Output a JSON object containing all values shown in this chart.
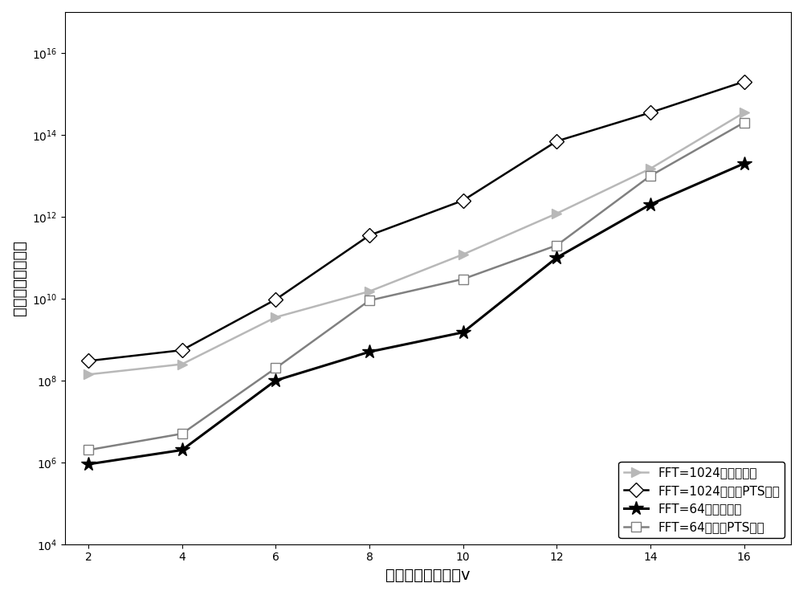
{
  "x": [
    2,
    4,
    6,
    8,
    10,
    12,
    14,
    16
  ],
  "fft1024_traditional": [
    300000000.0,
    550000000.0,
    9500000000.0,
    350000000000.0,
    2500000000000.0,
    70000000000000.0,
    350000000000000.0,
    2000000000000000.0
  ],
  "fft1024_combined": [
    140000000.0,
    250000000.0,
    3500000000.0,
    15000000000.0,
    120000000000.0,
    1200000000000.0,
    15000000000000.0,
    350000000000000.0
  ],
  "fft64_combined": [
    900000.0,
    2000000.0,
    100000000.0,
    500000000.0,
    1500000000.0,
    100000000000.0,
    2000000000000.0,
    20000000000000.0
  ],
  "fft64_traditional": [
    2000000.0,
    5000000.0,
    200000000.0,
    9000000000.0,
    30000000000.0,
    200000000000.0,
    10000000000000.0,
    200000000000000.0
  ],
  "ylabel": "实数计算乘法次数",
  "xlabel": "分隔的子序列列数v",
  "legend_labels": [
    "FFT=1024，联合算法",
    "FFT=1024，传统PTS算法",
    "FFT=64，联合算法",
    "FFT=64，传统PTS算法"
  ],
  "ylim_min": 10000.0,
  "ylim_max": 1e+17,
  "color_gray_light": "#b8b8b8",
  "color_black": "#000000",
  "color_gray_dark": "#808080"
}
